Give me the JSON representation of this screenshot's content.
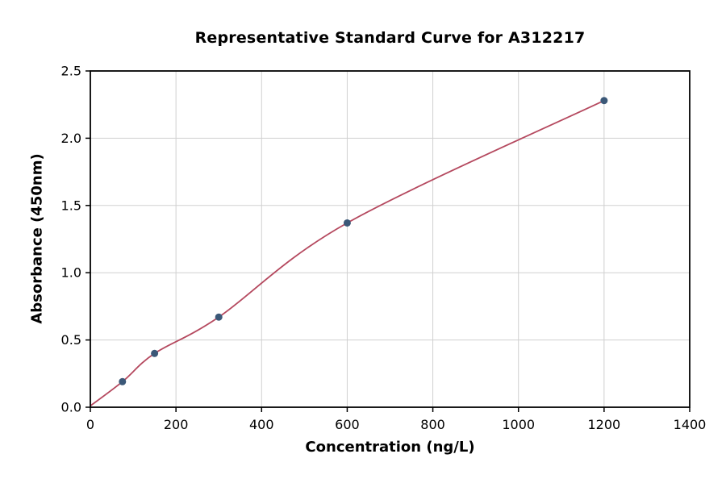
{
  "chart_data": {
    "type": "scatter",
    "title": "Representative Standard Curve for A312217",
    "xlabel": "Concentration (ng/L)",
    "ylabel": "Absorbance (450nm)",
    "xlim": [
      0,
      1400
    ],
    "ylim": [
      0,
      2.5
    ],
    "xticks": [
      0,
      200,
      400,
      600,
      800,
      1000,
      1200,
      1400
    ],
    "xtick_labels": [
      "0",
      "200",
      "400",
      "600",
      "800",
      "1000",
      "1200",
      "1400"
    ],
    "yticks": [
      0,
      0.5,
      1,
      1.5,
      2,
      2.5
    ],
    "ytick_labels": [
      "0.0",
      "0.5",
      "1.0",
      "1.5",
      "2.0",
      "2.5"
    ],
    "grid": true,
    "series": [
      {
        "name": "standard-points",
        "type": "scatter",
        "x": [
          75,
          150,
          300,
          600,
          1200
        ],
        "y": [
          0.19,
          0.4,
          0.67,
          1.37,
          2.28
        ]
      },
      {
        "name": "fitted-curve",
        "type": "line",
        "x": [
          0,
          75,
          150,
          300,
          600,
          1200
        ],
        "y": [
          0.01,
          0.19,
          0.4,
          0.67,
          1.37,
          2.28
        ]
      }
    ],
    "colors": {
      "curve": "#b5495f",
      "marker": "#3b5878",
      "grid": "#d0d0d0",
      "axis": "#000000",
      "background": "#ffffff"
    }
  }
}
